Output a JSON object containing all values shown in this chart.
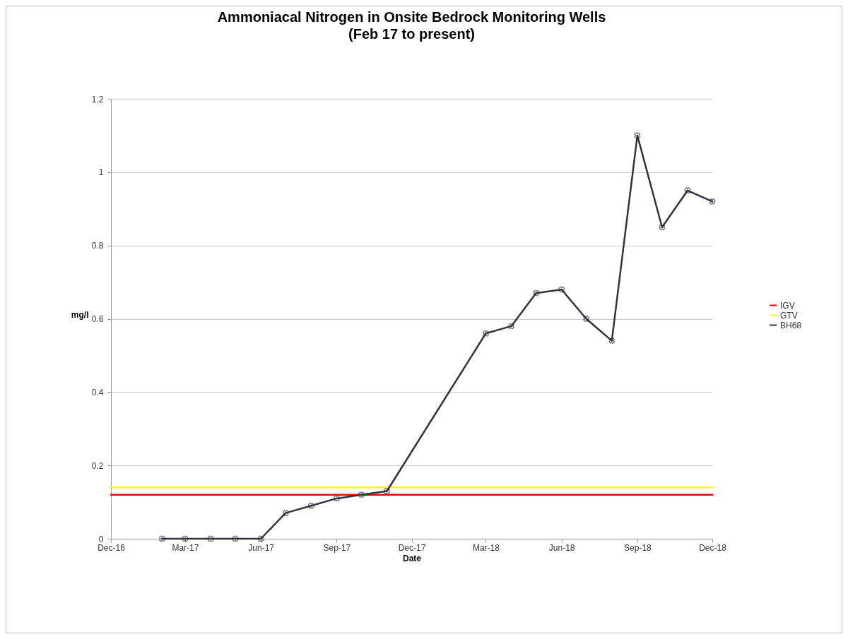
{
  "chart_data": {
    "type": "line",
    "title": "Ammoniacal Nitrogen in Onsite Bedrock Monitoring Wells",
    "subtitle": "(Feb 17 to present)",
    "xlabel": "Date",
    "ylabel": "mg/l",
    "series": [
      {
        "name": "IGV",
        "color": "#ff0000",
        "x": [
          "2016-12",
          "2018-12"
        ],
        "values": [
          0.12,
          0.12
        ]
      },
      {
        "name": "GTV",
        "color": "#ffff00",
        "x": [
          "2016-12",
          "2018-12"
        ],
        "values": [
          0.14,
          0.14
        ]
      },
      {
        "name": "BH68",
        "color": "#333340",
        "marker": "cross",
        "x": [
          "2017-02",
          "2017-03",
          "2017-04",
          "2017-05",
          "2017-06",
          "2017-07",
          "2017-08",
          "2017-09",
          "2017-10",
          "2017-11",
          "2018-03",
          "2018-04",
          "2018-05",
          "2018-06",
          "2018-07",
          "2018-08",
          "2018-09",
          "2018-10",
          "2018-11",
          "2018-12"
        ],
        "values": [
          0,
          0,
          0,
          0,
          0,
          0.07,
          0.09,
          0.11,
          0.12,
          0.13,
          0.56,
          0.58,
          0.67,
          0.68,
          0.6,
          0.54,
          1.1,
          0.85,
          0.95,
          0.92
        ]
      }
    ],
    "xlim": [
      "2016-12",
      "2018-12"
    ],
    "xticks": [
      {
        "value": "2016-12",
        "label": "Dec-16"
      },
      {
        "value": "2017-03",
        "label": "Mar-17"
      },
      {
        "value": "2017-06",
        "label": "Jun-17"
      },
      {
        "value": "2017-09",
        "label": "Sep-17"
      },
      {
        "value": "2017-12",
        "label": "Dec-17"
      },
      {
        "value": "2018-03",
        "label": "Mar-18"
      },
      {
        "value": "2018-06",
        "label": "Jun-18"
      },
      {
        "value": "2018-09",
        "label": "Sep-18"
      },
      {
        "value": "2018-12",
        "label": "Dec-18"
      }
    ],
    "ylim": [
      0,
      1.2
    ],
    "yticks": [
      0,
      0.2,
      0.4,
      0.6,
      0.8,
      1,
      1.2
    ],
    "grid": "y",
    "legend": "right"
  }
}
